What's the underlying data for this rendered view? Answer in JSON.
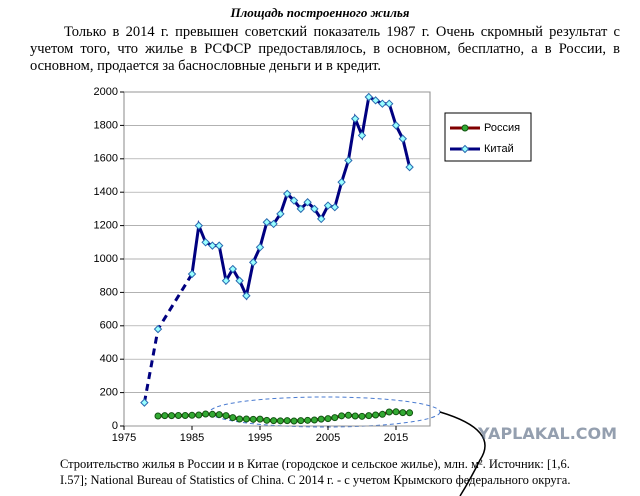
{
  "heading": "Площадь построенного жилья",
  "paragraph": "Только в 2014 г. превышен советский показатель 1987 г. Очень скромный результат с учетом того, что жилье в РСФСР предоставлялось, в основном, бесплатно, а в России, в основном, продается за баснословные деньги и в кредит.",
  "chart_data": {
    "type": "line",
    "xlim": [
      1975,
      2020
    ],
    "xticks": [
      1975,
      1985,
      1995,
      2005,
      2015
    ],
    "ylim": [
      0,
      2000
    ],
    "yticks": [
      0,
      200,
      400,
      600,
      800,
      1000,
      1200,
      1400,
      1600,
      1800,
      2000
    ],
    "grid": true,
    "legend": "right",
    "series": [
      {
        "name": "Россия",
        "color": "#800000",
        "marker_color": "#33aa33",
        "x": [
          1980,
          1981,
          1982,
          1983,
          1984,
          1985,
          1986,
          1987,
          1988,
          1989,
          1990,
          1991,
          1992,
          1993,
          1994,
          1995,
          1996,
          1997,
          1998,
          1999,
          2000,
          2001,
          2002,
          2003,
          2004,
          2005,
          2006,
          2007,
          2008,
          2009,
          2010,
          2011,
          2012,
          2013,
          2014,
          2015,
          2016,
          2017
        ],
        "values": [
          60,
          62,
          62,
          63,
          63,
          64,
          66,
          72,
          70,
          68,
          62,
          50,
          42,
          42,
          40,
          41,
          34,
          32,
          31,
          32,
          30,
          32,
          34,
          36,
          41,
          44,
          50,
          61,
          64,
          60,
          58,
          62,
          66,
          70,
          84,
          85,
          80,
          79
        ]
      },
      {
        "name": "Китай",
        "color": "#000080",
        "marker_color": "#99ffff",
        "x": [
          1978,
          1980,
          1985,
          1986,
          1987,
          1988,
          1989,
          1990,
          1991,
          1992,
          1993,
          1994,
          1995,
          1996,
          1997,
          1998,
          1999,
          2000,
          2001,
          2002,
          2003,
          2004,
          2005,
          2006,
          2007,
          2008,
          2009,
          2010,
          2011,
          2012,
          2013,
          2014,
          2015,
          2016,
          2017
        ],
        "values": [
          140,
          580,
          910,
          1200,
          1100,
          1080,
          1080,
          870,
          940,
          870,
          780,
          980,
          1070,
          1220,
          1210,
          1270,
          1390,
          1350,
          1300,
          1340,
          1300,
          1240,
          1320,
          1310,
          1460,
          1590,
          1840,
          1740,
          1970,
          1950,
          1930,
          1930,
          1800,
          1720,
          1550
        ]
      }
    ]
  },
  "caption": "Строительство жилья в России  и в Китае (городское и сельское жилье), млн. м². Источник: [1,6. I.57];   National Bureau of Statistics of China.  С 2014 г. - с учетом Крымского федерального округа.",
  "watermark": "YAPLAKAL.COM"
}
